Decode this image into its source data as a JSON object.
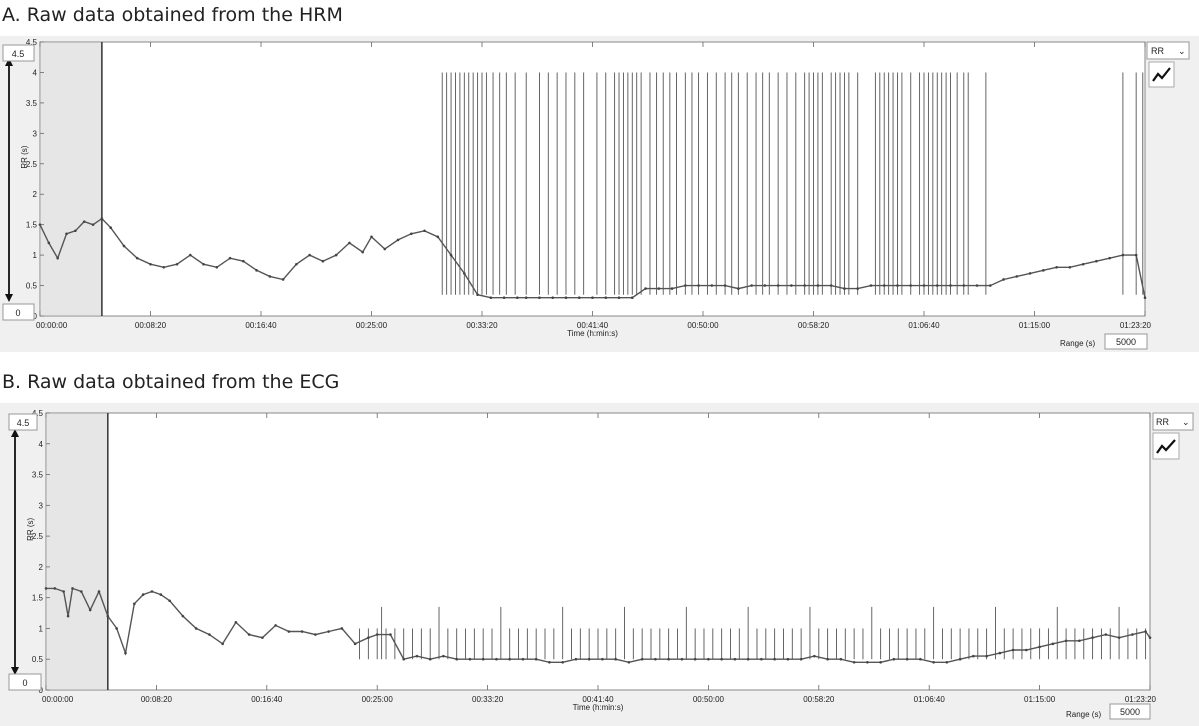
{
  "panels": [
    {
      "title": "A. Raw data obtained from the HRM",
      "max_box": "4.5",
      "min_box": "0",
      "series_selector": "RR",
      "dropdown_glyph": "⌄",
      "range_label": "Range (s)",
      "range_value": "5000",
      "stripe_color": "#555555",
      "shade_color": "#e6e6e6"
    },
    {
      "title": "B. Raw data obtained from the ECG",
      "max_box": "4.5",
      "min_box": "0",
      "series_selector": "RR",
      "dropdown_glyph": "⌄",
      "range_label": "Range (s)",
      "range_value": "5000",
      "stripe_color": "#555555",
      "shade_color": "#e6e6e6"
    }
  ],
  "chart_data": [
    {
      "type": "line",
      "title": "A. Raw data obtained from the HRM",
      "xlabel": "Time (h:min:s)",
      "ylabel": "RR (s)",
      "x_ticks": [
        "00:00:00",
        "00:08:20",
        "00:16:40",
        "00:25:00",
        "00:33:20",
        "00:41:40",
        "00:50:00",
        "00:58:20",
        "01:06:40",
        "01:15:00",
        "01:23:20"
      ],
      "y_ticks": [
        "0",
        "0.5",
        "1",
        "1.5",
        "2",
        "2.5",
        "3",
        "3.5",
        "4",
        "4.5"
      ],
      "xlim": [
        0,
        5000
      ],
      "ylim": [
        0,
        4.5
      ],
      "shaded_region": [
        0,
        280
      ],
      "series": [
        {
          "x": [
            0,
            40,
            80,
            120,
            160,
            200,
            240,
            280,
            320,
            380,
            440,
            500,
            560,
            620,
            680,
            740,
            800,
            860,
            920,
            980,
            1040,
            1100,
            1160,
            1220,
            1280,
            1340,
            1400,
            1460,
            1500,
            1560,
            1620,
            1680,
            1740,
            1800,
            1860,
            1920,
            1980,
            2040,
            2100,
            2160,
            2200,
            2260,
            2320,
            2380,
            2440,
            2500,
            2560,
            2620,
            2680,
            2740,
            2800,
            2860,
            2920,
            2980,
            3040,
            3100,
            3160,
            3220,
            3280,
            3340,
            3400,
            3460,
            3520,
            3580,
            3640,
            3700,
            3760,
            3820,
            3880,
            3940,
            4000,
            4060,
            4120,
            4180,
            4240,
            4300,
            4360,
            4420,
            4480,
            4540,
            4600,
            4660,
            4720,
            4780,
            4840,
            4900,
            4960,
            5000
          ],
          "y": [
            1.5,
            1.2,
            0.95,
            1.35,
            1.4,
            1.55,
            1.5,
            1.6,
            1.45,
            1.15,
            0.95,
            0.85,
            0.8,
            0.85,
            1.0,
            0.85,
            0.8,
            0.95,
            0.9,
            0.75,
            0.65,
            0.6,
            0.85,
            1.0,
            0.9,
            1.0,
            1.2,
            1.05,
            1.3,
            1.1,
            1.25,
            1.35,
            1.4,
            1.3,
            1.0,
            0.7,
            0.35,
            0.3,
            0.3,
            0.3,
            0.3,
            0.3,
            0.3,
            0.3,
            0.3,
            0.3,
            0.3,
            0.3,
            0.3,
            0.45,
            0.45,
            0.45,
            0.5,
            0.5,
            0.5,
            0.5,
            0.45,
            0.5,
            0.5,
            0.5,
            0.5,
            0.5,
            0.5,
            0.5,
            0.45,
            0.45,
            0.5,
            0.5,
            0.5,
            0.5,
            0.5,
            0.5,
            0.5,
            0.5,
            0.5,
            0.5,
            0.6,
            0.65,
            0.7,
            0.75,
            0.8,
            0.8,
            0.85,
            0.9,
            0.95,
            1.0,
            1.0,
            0.3
          ]
        }
      ],
      "spikes": {
        "to_value": 4.0,
        "base_value": 0.35,
        "x": [
          1820,
          1840,
          1860,
          1880,
          1900,
          1920,
          1940,
          1960,
          1980,
          2000,
          2020,
          2050,
          2080,
          2110,
          2150,
          2200,
          2260,
          2300,
          2340,
          2380,
          2420,
          2460,
          2520,
          2560,
          2600,
          2620,
          2640,
          2660,
          2680,
          2700,
          2720,
          2760,
          2790,
          2820,
          2850,
          2880,
          2920,
          2950,
          2980,
          3020,
          3060,
          3100,
          3130,
          3160,
          3200,
          3240,
          3270,
          3300,
          3340,
          3380,
          3420,
          3460,
          3480,
          3500,
          3520,
          3540,
          3580,
          3600,
          3620,
          3640,
          3660,
          3700,
          3780,
          3800,
          3820,
          3840,
          3860,
          3880,
          3900,
          3940,
          3980,
          4000,
          4020,
          4040,
          4060,
          4080,
          4100,
          4120,
          4150,
          4180,
          4200,
          4280,
          4900,
          4960,
          4990
        ]
      }
    },
    {
      "type": "line",
      "title": "B. Raw data obtained from the ECG",
      "xlabel": "Time (h:min:s)",
      "ylabel": "RR (s)",
      "x_ticks": [
        "00:00:00",
        "00:08:20",
        "00:16:40",
        "00:25:00",
        "00:33:20",
        "00:41:40",
        "00:50:00",
        "00:58:20",
        "01:06:40",
        "01:15:00",
        "01:23:20"
      ],
      "y_ticks": [
        "0",
        "0.5",
        "1",
        "1.5",
        "2",
        "2.5",
        "3",
        "3.5",
        "4",
        "4.5"
      ],
      "xlim": [
        0,
        5000
      ],
      "ylim": [
        0,
        4.5
      ],
      "shaded_region": [
        0,
        280
      ],
      "series": [
        {
          "x": [
            0,
            40,
            80,
            100,
            120,
            160,
            200,
            240,
            280,
            320,
            360,
            400,
            440,
            480,
            520,
            560,
            620,
            680,
            740,
            800,
            860,
            920,
            980,
            1040,
            1100,
            1160,
            1220,
            1280,
            1340,
            1400,
            1460,
            1500,
            1560,
            1620,
            1680,
            1740,
            1800,
            1860,
            1920,
            1980,
            2040,
            2100,
            2160,
            2220,
            2280,
            2340,
            2400,
            2460,
            2520,
            2580,
            2640,
            2700,
            2760,
            2820,
            2880,
            2940,
            3000,
            3060,
            3120,
            3180,
            3240,
            3300,
            3360,
            3420,
            3480,
            3540,
            3600,
            3660,
            3720,
            3780,
            3840,
            3900,
            3960,
            4020,
            4080,
            4140,
            4200,
            4260,
            4320,
            4380,
            4440,
            4500,
            4560,
            4620,
            4680,
            4740,
            4800,
            4860,
            4920,
            4980,
            5000
          ],
          "y": [
            1.65,
            1.65,
            1.6,
            1.2,
            1.65,
            1.6,
            1.3,
            1.6,
            1.2,
            1.0,
            0.6,
            1.4,
            1.55,
            1.6,
            1.55,
            1.45,
            1.2,
            1.0,
            0.9,
            0.75,
            1.1,
            0.9,
            0.85,
            1.05,
            0.95,
            0.95,
            0.9,
            0.95,
            1.0,
            0.75,
            0.85,
            0.9,
            0.9,
            0.5,
            0.55,
            0.5,
            0.55,
            0.5,
            0.5,
            0.5,
            0.5,
            0.5,
            0.5,
            0.5,
            0.45,
            0.45,
            0.5,
            0.5,
            0.5,
            0.5,
            0.45,
            0.5,
            0.5,
            0.5,
            0.5,
            0.5,
            0.5,
            0.5,
            0.5,
            0.5,
            0.5,
            0.5,
            0.5,
            0.5,
            0.55,
            0.5,
            0.5,
            0.45,
            0.45,
            0.45,
            0.5,
            0.5,
            0.5,
            0.45,
            0.45,
            0.5,
            0.55,
            0.55,
            0.6,
            0.65,
            0.65,
            0.7,
            0.75,
            0.8,
            0.8,
            0.85,
            0.9,
            0.85,
            0.9,
            0.95,
            0.85
          ]
        }
      ],
      "spikes": {
        "to_value": 1.0,
        "base_value": 0.5,
        "x": [
          1420,
          1460,
          1500,
          1520,
          1540,
          1580,
          1620,
          1660,
          1700,
          1740,
          1780,
          1820,
          1860,
          1900,
          1940,
          1980,
          2020,
          2060,
          2100,
          2140,
          2180,
          2220,
          2260,
          2300,
          2340,
          2380,
          2420,
          2460,
          2500,
          2540,
          2580,
          2620,
          2660,
          2700,
          2740,
          2780,
          2820,
          2860,
          2900,
          2940,
          2980,
          3020,
          3060,
          3100,
          3140,
          3180,
          3220,
          3260,
          3300,
          3340,
          3380,
          3420,
          3460,
          3500,
          3540,
          3580,
          3620,
          3660,
          3700,
          3740,
          3780,
          3820,
          3860,
          3900,
          3940,
          3980,
          4020,
          4060,
          4100,
          4140,
          4180,
          4220,
          4260,
          4300,
          4340,
          4380,
          4420,
          4460,
          4500,
          4540,
          4580,
          4620,
          4660,
          4700,
          4740,
          4780,
          4820,
          4860,
          4900,
          4940,
          4980
        ]
      }
    }
  ]
}
